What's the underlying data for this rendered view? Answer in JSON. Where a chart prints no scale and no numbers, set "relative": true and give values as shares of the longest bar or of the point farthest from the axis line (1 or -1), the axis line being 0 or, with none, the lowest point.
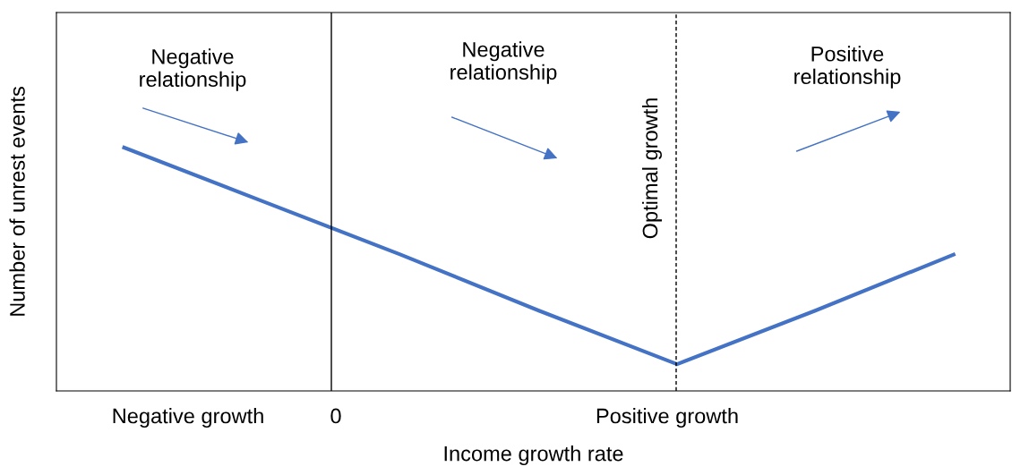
{
  "chart_data": {
    "type": "line",
    "relative": true,
    "xlabel": "Income growth rate",
    "ylabel": "Number of unrest events",
    "categories": [
      null,
      null,
      null,
      null,
      null,
      null,
      null
    ],
    "series": [
      {
        "color": "#4472c4",
        "values": [
          1,
          0.78,
          0.56,
          0.33,
          0.11,
          0.33,
          0.56
        ]
      }
    ],
    "annotations": [
      "Negative\nrelationship",
      "Negative\nrelationship",
      "Positive\nrelationship",
      "Negative growth",
      "0",
      "Positive growth",
      "Optimal growth"
    ],
    "grid": false
  }
}
